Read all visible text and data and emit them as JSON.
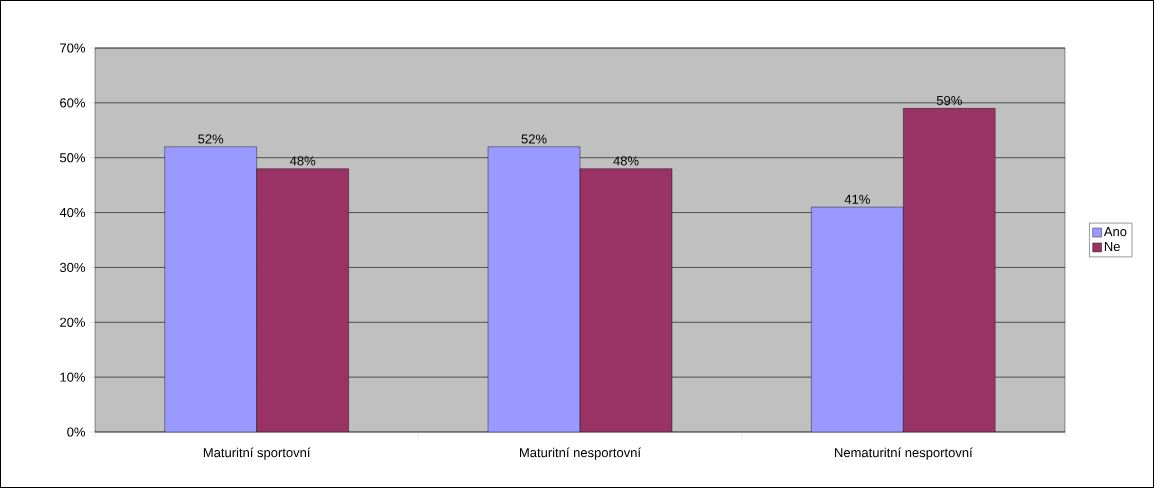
{
  "chart_data": {
    "type": "bar",
    "categories": [
      "Maturitní sportovní",
      "Maturitní nesportovní",
      "Nematuritní nesportovní"
    ],
    "series": [
      {
        "name": "Ano",
        "color": "#9999ff",
        "values": [
          52,
          52,
          41
        ],
        "value_labels": [
          "52%",
          "52%",
          "41%"
        ]
      },
      {
        "name": "Ne",
        "color": "#993366",
        "values": [
          48,
          48,
          59
        ],
        "value_labels": [
          "48%",
          "48%",
          "59%"
        ]
      }
    ],
    "ylim": [
      0,
      70
    ],
    "yticks": [
      {
        "value": 0,
        "label": "0%"
      },
      {
        "value": 10,
        "label": "10%"
      },
      {
        "value": 20,
        "label": "20%"
      },
      {
        "value": 30,
        "label": "30%"
      },
      {
        "value": 40,
        "label": "40%"
      },
      {
        "value": 50,
        "label": "50%"
      },
      {
        "value": 60,
        "label": "60%"
      },
      {
        "value": 70,
        "label": "70%"
      }
    ],
    "grid": "y",
    "legend": "right"
  }
}
